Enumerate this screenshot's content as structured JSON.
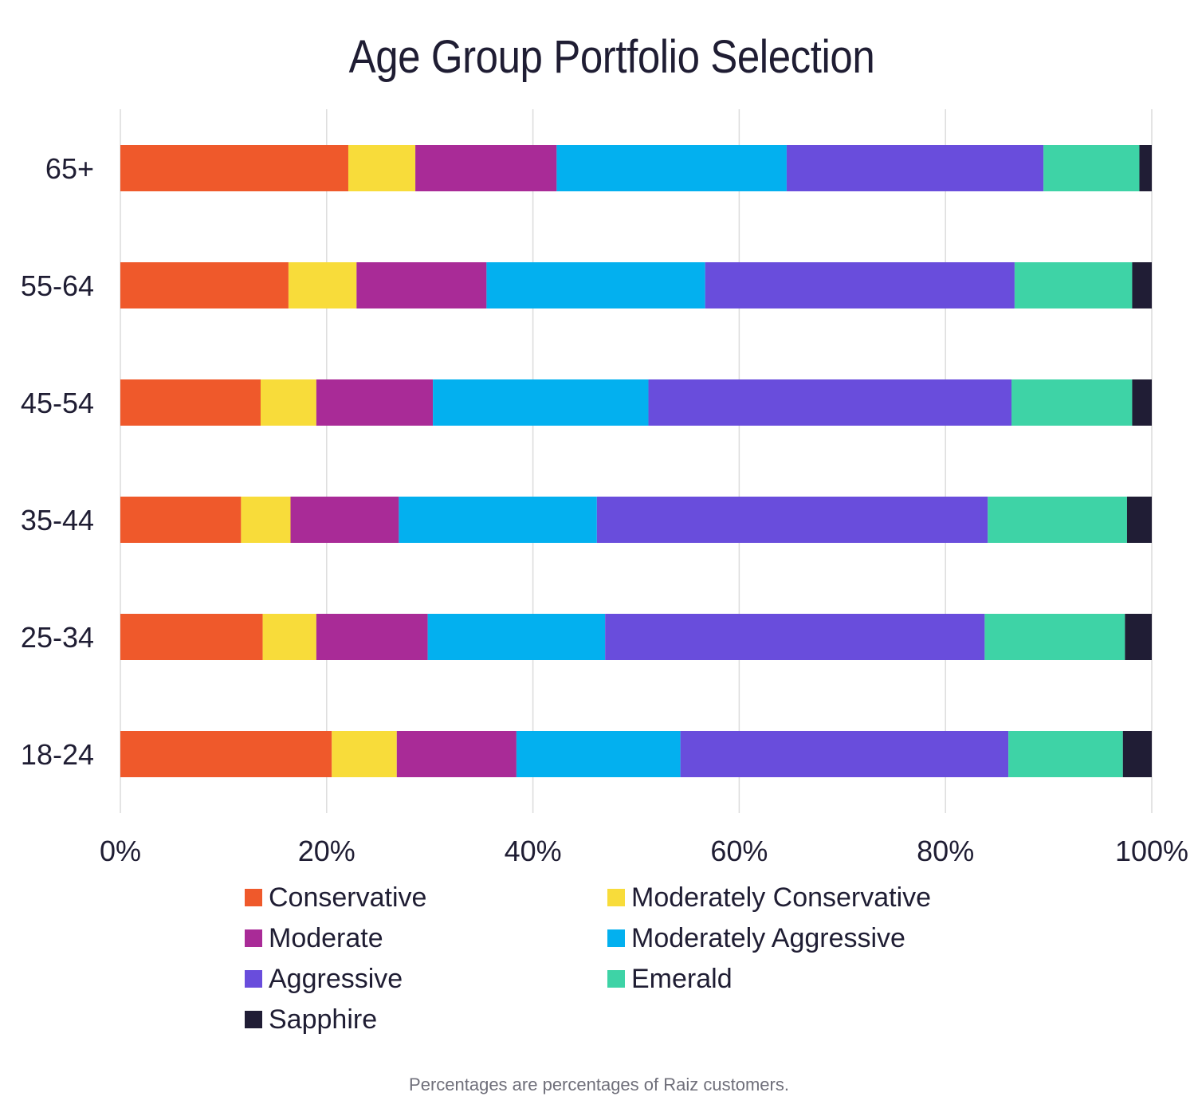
{
  "colors": {
    "Conservative": "#ef592b",
    "Moderately Conservative": "#f8dc3a",
    "Moderate": "#a92b97",
    "Moderately Aggressive": "#03b0ef",
    "Aggressive": "#694ddc",
    "Emerald": "#3ed3a6",
    "Sapphire": "#201d35",
    "grid": "#dcdcdc",
    "text": "#1f1d33"
  },
  "chart_data": {
    "type": "bar",
    "orientation": "horizontal",
    "stacked": true,
    "title": "Age Group Portfolio Selection",
    "xlabel": "",
    "ylabel": "",
    "xlim": [
      0,
      100
    ],
    "x_ticks": [
      "0%",
      "20%",
      "40%",
      "60%",
      "80%",
      "100%"
    ],
    "grid": "vertical",
    "legend_position": "bottom",
    "categories": [
      "65+",
      "55-64",
      "45-54",
      "35-44",
      "25-34",
      "18-24"
    ],
    "series": [
      {
        "name": "Conservative",
        "values": [
          22.1,
          16.3,
          13.6,
          11.7,
          13.8,
          20.5
        ]
      },
      {
        "name": "Moderately Conservative",
        "values": [
          6.5,
          6.6,
          5.4,
          4.8,
          5.2,
          6.3
        ]
      },
      {
        "name": "Moderate",
        "values": [
          13.7,
          12.6,
          11.3,
          10.5,
          10.8,
          11.6
        ]
      },
      {
        "name": "Moderately Aggressive",
        "values": [
          22.3,
          21.2,
          20.9,
          19.2,
          17.2,
          15.9
        ]
      },
      {
        "name": "Aggressive",
        "values": [
          24.9,
          30.0,
          35.2,
          37.9,
          36.8,
          31.8
        ]
      },
      {
        "name": "Emerald",
        "values": [
          9.3,
          11.4,
          11.7,
          13.5,
          13.6,
          11.1
        ]
      },
      {
        "name": "Sapphire",
        "values": [
          1.2,
          1.9,
          1.9,
          2.4,
          2.6,
          2.8
        ]
      }
    ]
  },
  "footnote": "Percentages are percentages of Raiz customers."
}
